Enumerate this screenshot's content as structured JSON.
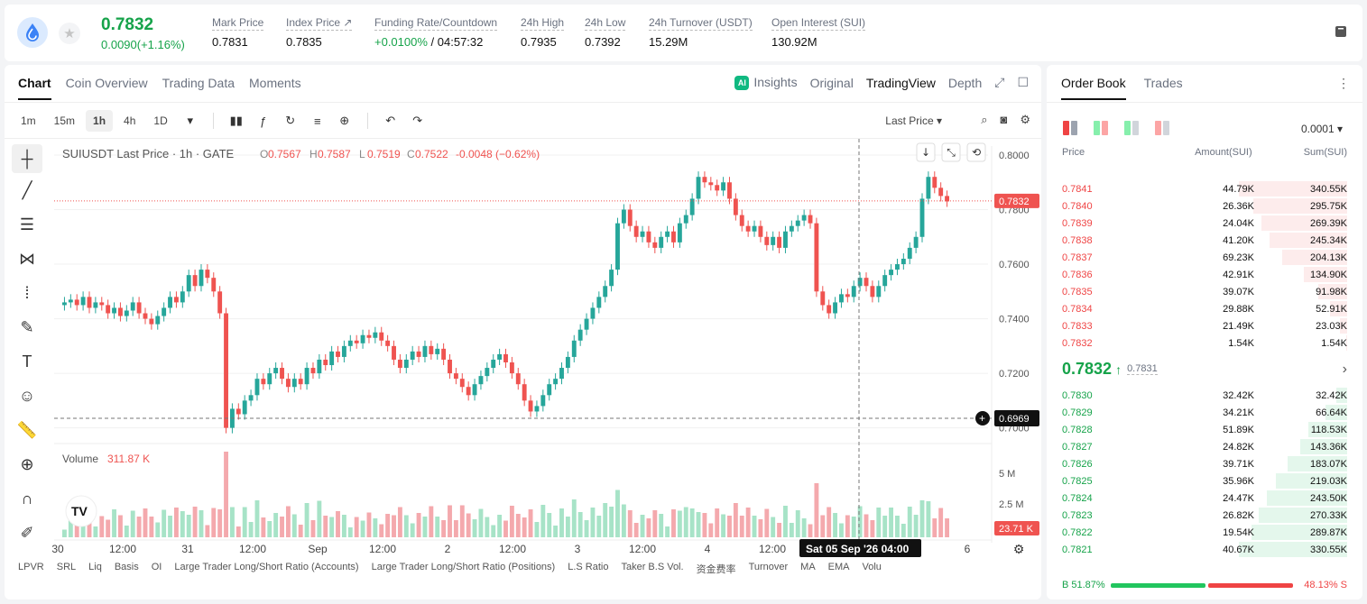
{
  "header": {
    "last_price": "0.7832",
    "change": "0.0090(+1.16%)",
    "stats": [
      {
        "label": "Mark Price",
        "value": "0.7831"
      },
      {
        "label": "Index Price ↗",
        "value": "0.7835"
      },
      {
        "label": "Funding Rate/Countdown",
        "value_green": "+0.0100%",
        "value": "/ 04:57:32"
      },
      {
        "label": "24h High",
        "value": "0.7935"
      },
      {
        "label": "24h Low",
        "value": "0.7392"
      },
      {
        "label": "24h Turnover (USDT)",
        "value": "15.29M"
      },
      {
        "label": "Open Interest (SUI)",
        "value": "130.92M"
      }
    ]
  },
  "chart_tabs": [
    "Chart",
    "Coin Overview",
    "Trading Data",
    "Moments"
  ],
  "view_tabs": {
    "insights": "Insights",
    "ai_badge": "AI",
    "original": "Original",
    "tradingview": "TradingView",
    "depth": "Depth"
  },
  "timeframes": [
    "1m",
    "15m",
    "1h",
    "4h",
    "1D"
  ],
  "active_timeframe": "1h",
  "price_type": "Last Price ▾",
  "legend": {
    "symbol": "SUIUSDT Last Price · 1h · GATE",
    "o": "0.7567",
    "h": "0.7587",
    "l": "0.7519",
    "c": "0.7522",
    "chg": "-0.0048 (−0.62%)"
  },
  "volume_legend": {
    "label": "Volume",
    "value": "311.87 K"
  },
  "colors": {
    "up": "#26a69a",
    "down": "#ef5350",
    "green_text": "#16a34a",
    "red_text": "#ef4444"
  },
  "price_axis": [
    "0.8000",
    "0.7800",
    "0.7600",
    "0.7400",
    "0.7200",
    "0.7000"
  ],
  "volume_axis": [
    "5 M",
    "2.5 M"
  ],
  "last_price_tag": "0.7832",
  "crosshair_price_tag": "0.6969",
  "volume_tag": "23.71 K",
  "time_axis": [
    "30",
    "12:00",
    "31",
    "12:00",
    "Sep",
    "12:00",
    "2",
    "12:00",
    "3",
    "12:00",
    "4",
    "12:00",
    "6"
  ],
  "crosshair_time": "Sat 05 Sep '26   04:00",
  "indicators": [
    "LPVR",
    "SRL",
    "Liq",
    "Basis",
    "OI",
    "Large Trader Long/Short Ratio (Accounts)",
    "Large Trader Long/Short Ratio (Positions)",
    "L.S Ratio",
    "Taker B.S Vol.",
    "资金费率",
    "Turnover",
    "MA",
    "EMA",
    "Volu"
  ],
  "chart_data": {
    "type": "candlestick",
    "ylim": [
      0.6969,
      0.8
    ],
    "candles_close": [
      0.746,
      0.747,
      0.745,
      0.748,
      0.744,
      0.746,
      0.745,
      0.742,
      0.744,
      0.741,
      0.743,
      0.746,
      0.742,
      0.74,
      0.738,
      0.741,
      0.744,
      0.748,
      0.746,
      0.75,
      0.756,
      0.752,
      0.758,
      0.755,
      0.75,
      0.742,
      0.7,
      0.707,
      0.705,
      0.71,
      0.712,
      0.718,
      0.716,
      0.72,
      0.722,
      0.718,
      0.715,
      0.718,
      0.716,
      0.722,
      0.72,
      0.725,
      0.723,
      0.728,
      0.726,
      0.73,
      0.732,
      0.731,
      0.734,
      0.733,
      0.735,
      0.732,
      0.73,
      0.725,
      0.722,
      0.725,
      0.728,
      0.726,
      0.73,
      0.727,
      0.729,
      0.725,
      0.72,
      0.718,
      0.715,
      0.712,
      0.716,
      0.719,
      0.722,
      0.725,
      0.727,
      0.724,
      0.72,
      0.716,
      0.71,
      0.706,
      0.708,
      0.712,
      0.716,
      0.718,
      0.722,
      0.726,
      0.732,
      0.736,
      0.74,
      0.744,
      0.748,
      0.752,
      0.758,
      0.775,
      0.78,
      0.774,
      0.77,
      0.772,
      0.768,
      0.766,
      0.77,
      0.772,
      0.768,
      0.775,
      0.778,
      0.784,
      0.792,
      0.79,
      0.789,
      0.787,
      0.79,
      0.784,
      0.778,
      0.774,
      0.772,
      0.774,
      0.77,
      0.767,
      0.77,
      0.766,
      0.772,
      0.774,
      0.776,
      0.778,
      0.775,
      0.75,
      0.745,
      0.742,
      0.746,
      0.749,
      0.748,
      0.752,
      0.755,
      0.752,
      0.748,
      0.752,
      0.756,
      0.758,
      0.76,
      0.762,
      0.766,
      0.77,
      0.784,
      0.792,
      0.788,
      0.785,
      0.783
    ],
    "volume_peaks_M": {
      "max": 5.0
    }
  },
  "orderbook": {
    "tabs": [
      "Order Book",
      "Trades"
    ],
    "precision": "0.0001 ▾",
    "headers": [
      "Price",
      "Amount(SUI)",
      "Sum(SUI)"
    ],
    "asks": [
      {
        "p": "0.7841",
        "a": "44.79K",
        "s": "340.55K",
        "pct": 100
      },
      {
        "p": "0.7840",
        "a": "26.36K",
        "s": "295.75K",
        "pct": 87
      },
      {
        "p": "0.7839",
        "a": "24.04K",
        "s": "269.39K",
        "pct": 79
      },
      {
        "p": "0.7838",
        "a": "41.20K",
        "s": "245.34K",
        "pct": 72
      },
      {
        "p": "0.7837",
        "a": "69.23K",
        "s": "204.13K",
        "pct": 60
      },
      {
        "p": "0.7836",
        "a": "42.91K",
        "s": "134.90K",
        "pct": 40
      },
      {
        "p": "0.7835",
        "a": "39.07K",
        "s": "91.98K",
        "pct": 27
      },
      {
        "p": "0.7834",
        "a": "29.88K",
        "s": "52.91K",
        "pct": 16
      },
      {
        "p": "0.7833",
        "a": "21.49K",
        "s": "23.03K",
        "pct": 7
      },
      {
        "p": "0.7832",
        "a": "1.54K",
        "s": "1.54K",
        "pct": 1
      }
    ],
    "mid_price": "0.7832",
    "mid_arrow": "↑",
    "mark_price": "0.7831",
    "bids": [
      {
        "p": "0.7830",
        "a": "32.42K",
        "s": "32.42K",
        "pct": 10
      },
      {
        "p": "0.7829",
        "a": "34.21K",
        "s": "66.64K",
        "pct": 20
      },
      {
        "p": "0.7828",
        "a": "51.89K",
        "s": "118.53K",
        "pct": 36
      },
      {
        "p": "0.7827",
        "a": "24.82K",
        "s": "143.36K",
        "pct": 43
      },
      {
        "p": "0.7826",
        "a": "39.71K",
        "s": "183.07K",
        "pct": 55
      },
      {
        "p": "0.7825",
        "a": "35.96K",
        "s": "219.03K",
        "pct": 66
      },
      {
        "p": "0.7824",
        "a": "24.47K",
        "s": "243.50K",
        "pct": 74
      },
      {
        "p": "0.7823",
        "a": "26.82K",
        "s": "270.33K",
        "pct": 82
      },
      {
        "p": "0.7822",
        "a": "19.54K",
        "s": "289.87K",
        "pct": 88
      },
      {
        "p": "0.7821",
        "a": "40.67K",
        "s": "330.55K",
        "pct": 100
      }
    ],
    "buy_ratio": "B 51.87%",
    "sell_ratio": "48.13% S",
    "buy_pct": 51.87
  }
}
